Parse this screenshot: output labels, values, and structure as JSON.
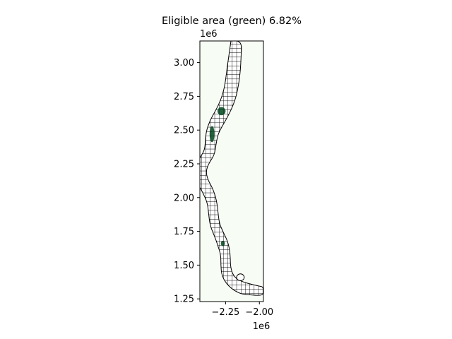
{
  "chart_data": {
    "type": "heatmap",
    "title": "Eligible area (green) 6.82%",
    "xlabel": "",
    "ylabel": "",
    "x_offset_label": "1e6",
    "y_offset_label": "1e6",
    "xlim": [
      -2.44,
      -1.97
    ],
    "ylim": [
      1.23,
      3.16
    ],
    "x_ticks": [
      -2.25,
      -2.0
    ],
    "x_tick_labels": [
      "−2.25",
      "−2.00"
    ],
    "y_ticks": [
      1.25,
      1.5,
      1.75,
      2.0,
      2.25,
      2.5,
      2.75,
      3.0
    ],
    "y_tick_labels": [
      "1.25",
      "1.50",
      "1.75",
      "2.00",
      "2.25",
      "2.50",
      "2.75",
      "3.00"
    ],
    "grid": false,
    "eligible_percent": 6.82,
    "background_color": "#f7fcf5",
    "eligible_color": "#00441b",
    "hatch_fill_color": "#ffffff",
    "hatch_line_color": "#000000",
    "corridor_centerline": [
      [
        -2.17,
        3.16
      ],
      [
        -2.18,
        3.05
      ],
      [
        -2.19,
        2.95
      ],
      [
        -2.2,
        2.86
      ],
      [
        -2.22,
        2.76
      ],
      [
        -2.25,
        2.68
      ],
      [
        -2.28,
        2.62
      ],
      [
        -2.32,
        2.55
      ],
      [
        -2.35,
        2.48
      ],
      [
        -2.36,
        2.4
      ],
      [
        -2.37,
        2.33
      ],
      [
        -2.41,
        2.27
      ],
      [
        -2.43,
        2.2
      ],
      [
        -2.42,
        2.12
      ],
      [
        -2.38,
        2.05
      ],
      [
        -2.35,
        1.97
      ],
      [
        -2.34,
        1.88
      ],
      [
        -2.33,
        1.8
      ],
      [
        -2.3,
        1.73
      ],
      [
        -2.27,
        1.66
      ],
      [
        -2.25,
        1.58
      ],
      [
        -2.25,
        1.5
      ],
      [
        -2.24,
        1.43
      ],
      [
        -2.2,
        1.37
      ],
      [
        -2.13,
        1.33
      ],
      [
        -2.07,
        1.32
      ],
      [
        -2.01,
        1.31
      ],
      [
        -1.97,
        1.31
      ]
    ],
    "corridor_halfwidth": [
      0.04,
      0.045,
      0.05,
      0.05,
      0.05,
      0.05,
      0.05,
      0.05,
      0.045,
      0.04,
      0.04,
      0.04,
      0.035,
      0.04,
      0.04,
      0.035,
      0.035,
      0.035,
      0.035,
      0.04,
      0.035,
      0.035,
      0.04,
      0.04,
      0.045,
      0.04,
      0.035,
      0.03
    ],
    "eligible_patches": [
      {
        "x": -2.28,
        "y": 2.64,
        "rx": 0.03,
        "ry": 0.03
      },
      {
        "x": -2.35,
        "y": 2.47,
        "rx": 0.018,
        "ry": 0.06
      },
      {
        "x": -2.27,
        "y": 1.66,
        "rx": 0.015,
        "ry": 0.02
      }
    ],
    "holes": [
      {
        "x": -2.14,
        "y": 1.41,
        "rx": 0.028,
        "ry": 0.025
      }
    ]
  }
}
